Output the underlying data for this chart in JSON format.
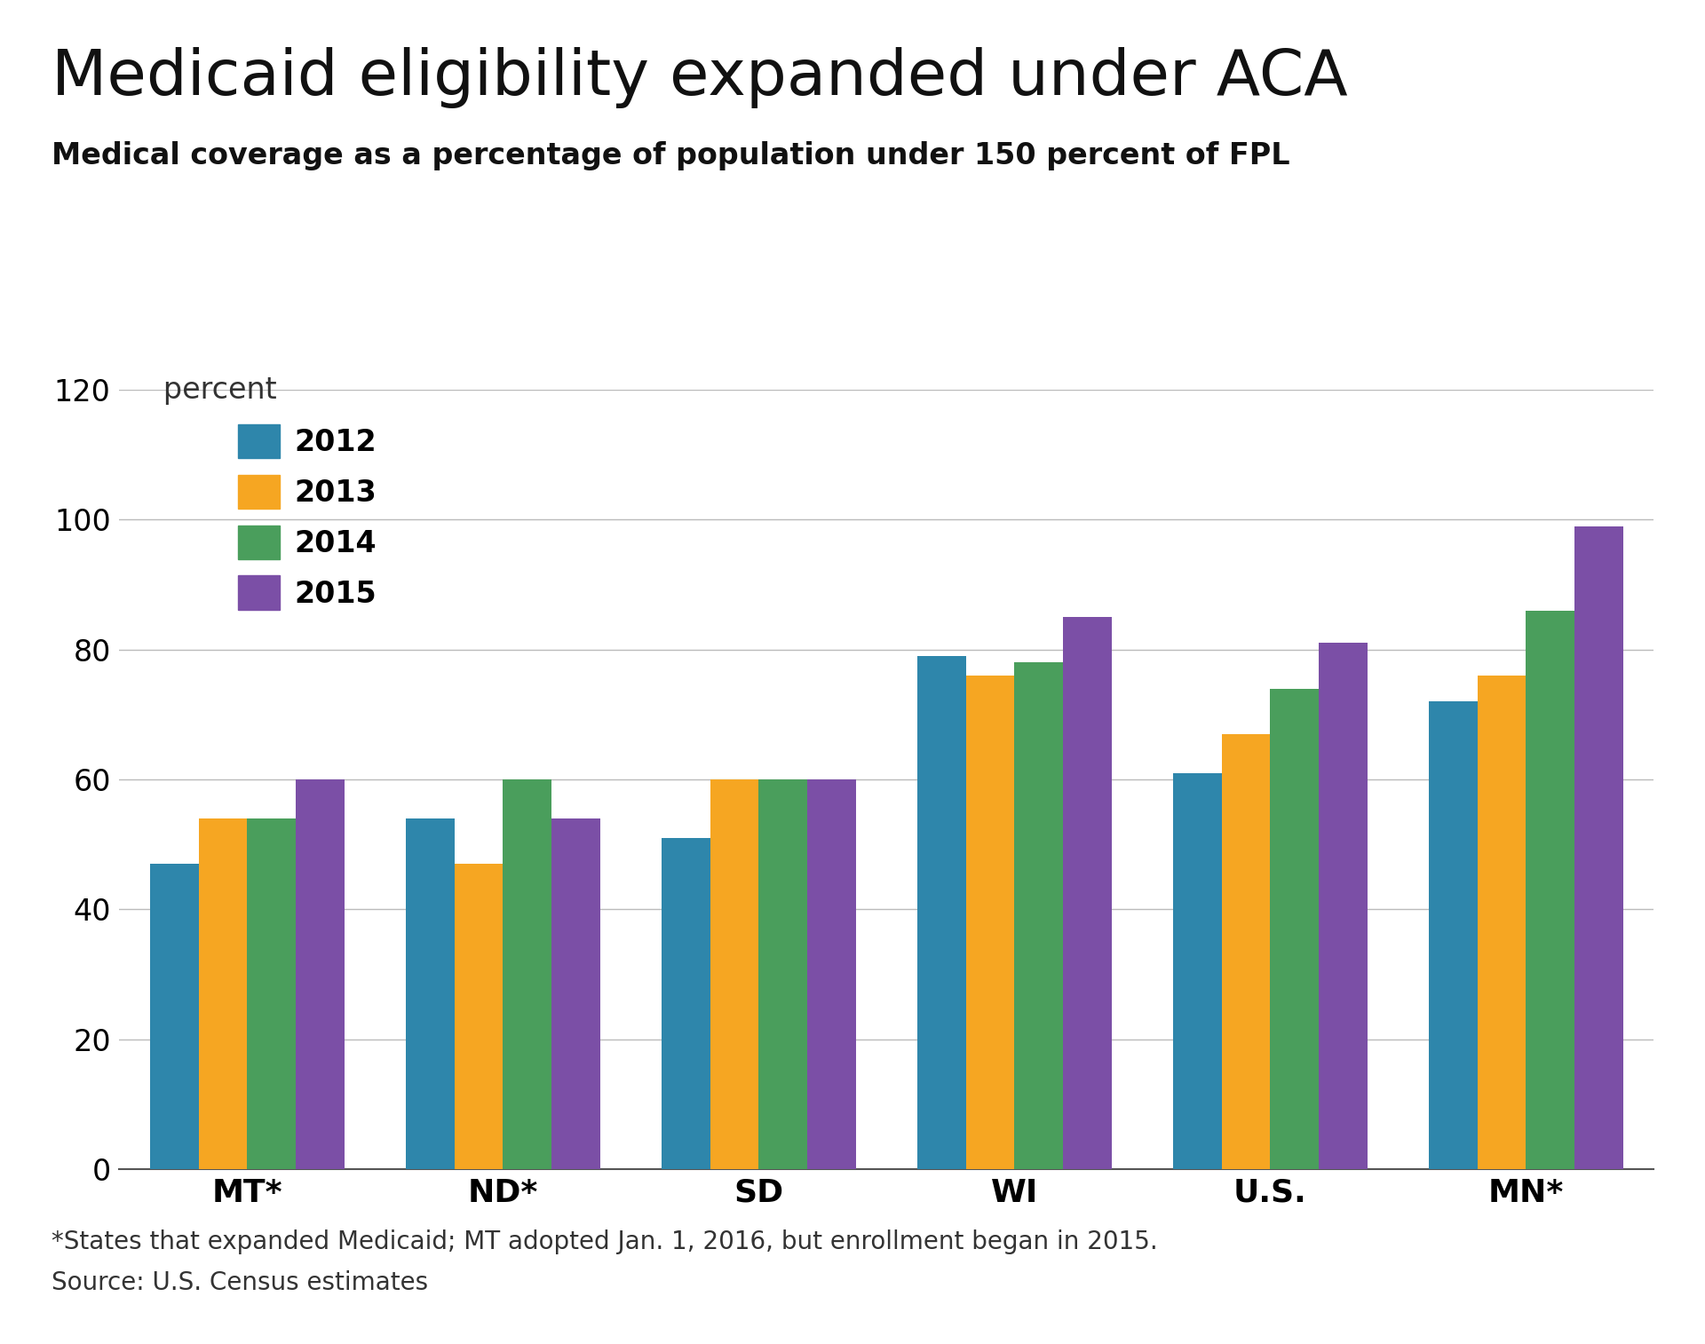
{
  "title": "Medicaid eligibility expanded under ACA",
  "subtitle": "Medical coverage as a percentage of population under 150 percent of FPL",
  "categories": [
    "MT*",
    "ND*",
    "SD",
    "WI",
    "U.S.",
    "MN*"
  ],
  "years": [
    "2012",
    "2013",
    "2014",
    "2015"
  ],
  "colors": [
    "#2e86ab",
    "#f6a622",
    "#4a9e5c",
    "#7b4fa6"
  ],
  "values": {
    "MT*": [
      47,
      54,
      54,
      60
    ],
    "ND*": [
      54,
      47,
      60,
      54
    ],
    "SD": [
      51,
      60,
      60,
      60
    ],
    "WI": [
      79,
      76,
      78,
      85
    ],
    "U.S.": [
      61,
      67,
      74,
      81
    ],
    "MN*": [
      72,
      76,
      86,
      99
    ]
  },
  "ylim": [
    0,
    120
  ],
  "yticks": [
    0,
    20,
    40,
    60,
    80,
    100,
    120
  ],
  "background_color": "#ffffff",
  "grid_color": "#bbbbbb",
  "bar_number_label": "3",
  "bar_number_bg": "#888888",
  "footnote_line1": "*States that expanded Medicaid; MT adopted Jan. 1, 2016, but enrollment began in 2015.",
  "footnote_line2": "Source: U.S. Census estimates",
  "title_fontsize": 52,
  "subtitle_fontsize": 24,
  "tick_fontsize": 24,
  "xtick_fontsize": 26,
  "legend_fontsize": 24,
  "footnote_fontsize": 20,
  "percent_label": "percent"
}
